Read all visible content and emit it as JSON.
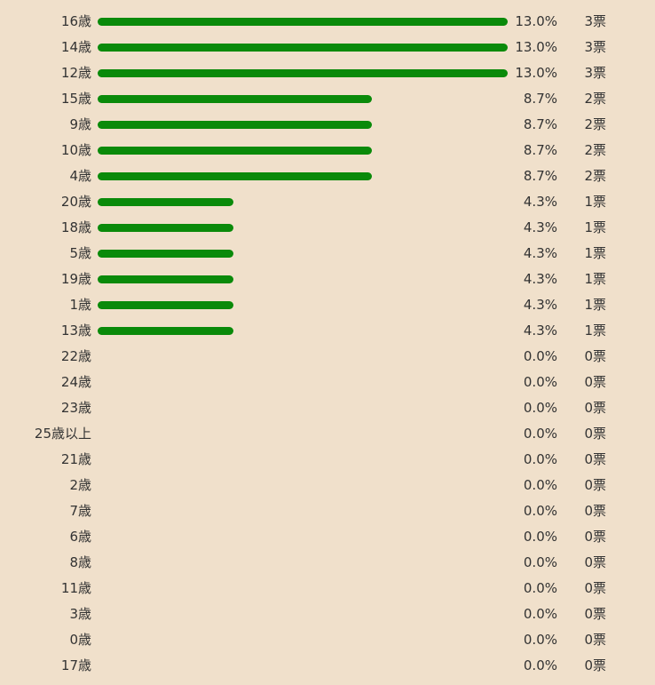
{
  "colors": {
    "background": "#f0e0cb",
    "bar": "#0a8a0a",
    "text": "#333333"
  },
  "chart_data": {
    "type": "bar",
    "orientation": "horizontal",
    "categories": [
      "16歳",
      "14歳",
      "12歳",
      "15歳",
      "9歳",
      "10歳",
      "4歳",
      "20歳",
      "18歳",
      "5歳",
      "19歳",
      "1歳",
      "13歳",
      "22歳",
      "24歳",
      "23歳",
      "25歳以上",
      "21歳",
      "2歳",
      "7歳",
      "6歳",
      "8歳",
      "11歳",
      "3歳",
      "0歳",
      "17歳"
    ],
    "values": [
      13.0,
      13.0,
      13.0,
      8.7,
      8.7,
      8.7,
      8.7,
      4.3,
      4.3,
      4.3,
      4.3,
      4.3,
      4.3,
      0.0,
      0.0,
      0.0,
      0.0,
      0.0,
      0.0,
      0.0,
      0.0,
      0.0,
      0.0,
      0.0,
      0.0,
      0.0
    ],
    "percent_labels": [
      "13.0%",
      "13.0%",
      "13.0%",
      "8.7%",
      "8.7%",
      "8.7%",
      "8.7%",
      "4.3%",
      "4.3%",
      "4.3%",
      "4.3%",
      "4.3%",
      "4.3%",
      "0.0%",
      "0.0%",
      "0.0%",
      "0.0%",
      "0.0%",
      "0.0%",
      "0.0%",
      "0.0%",
      "0.0%",
      "0.0%",
      "0.0%",
      "0.0%",
      "0.0%"
    ],
    "vote_labels": [
      "3票",
      "3票",
      "3票",
      "2票",
      "2票",
      "2票",
      "2票",
      "1票",
      "1票",
      "1票",
      "1票",
      "1票",
      "1票",
      "0票",
      "0票",
      "0票",
      "0票",
      "0票",
      "0票",
      "0票",
      "0票",
      "0票",
      "0票",
      "0票",
      "0票",
      "0票"
    ],
    "votes": [
      3,
      3,
      3,
      2,
      2,
      2,
      2,
      1,
      1,
      1,
      1,
      1,
      1,
      0,
      0,
      0,
      0,
      0,
      0,
      0,
      0,
      0,
      0,
      0,
      0,
      0
    ],
    "xlim": [
      0,
      13.0
    ],
    "grid": false,
    "legend": "none"
  }
}
